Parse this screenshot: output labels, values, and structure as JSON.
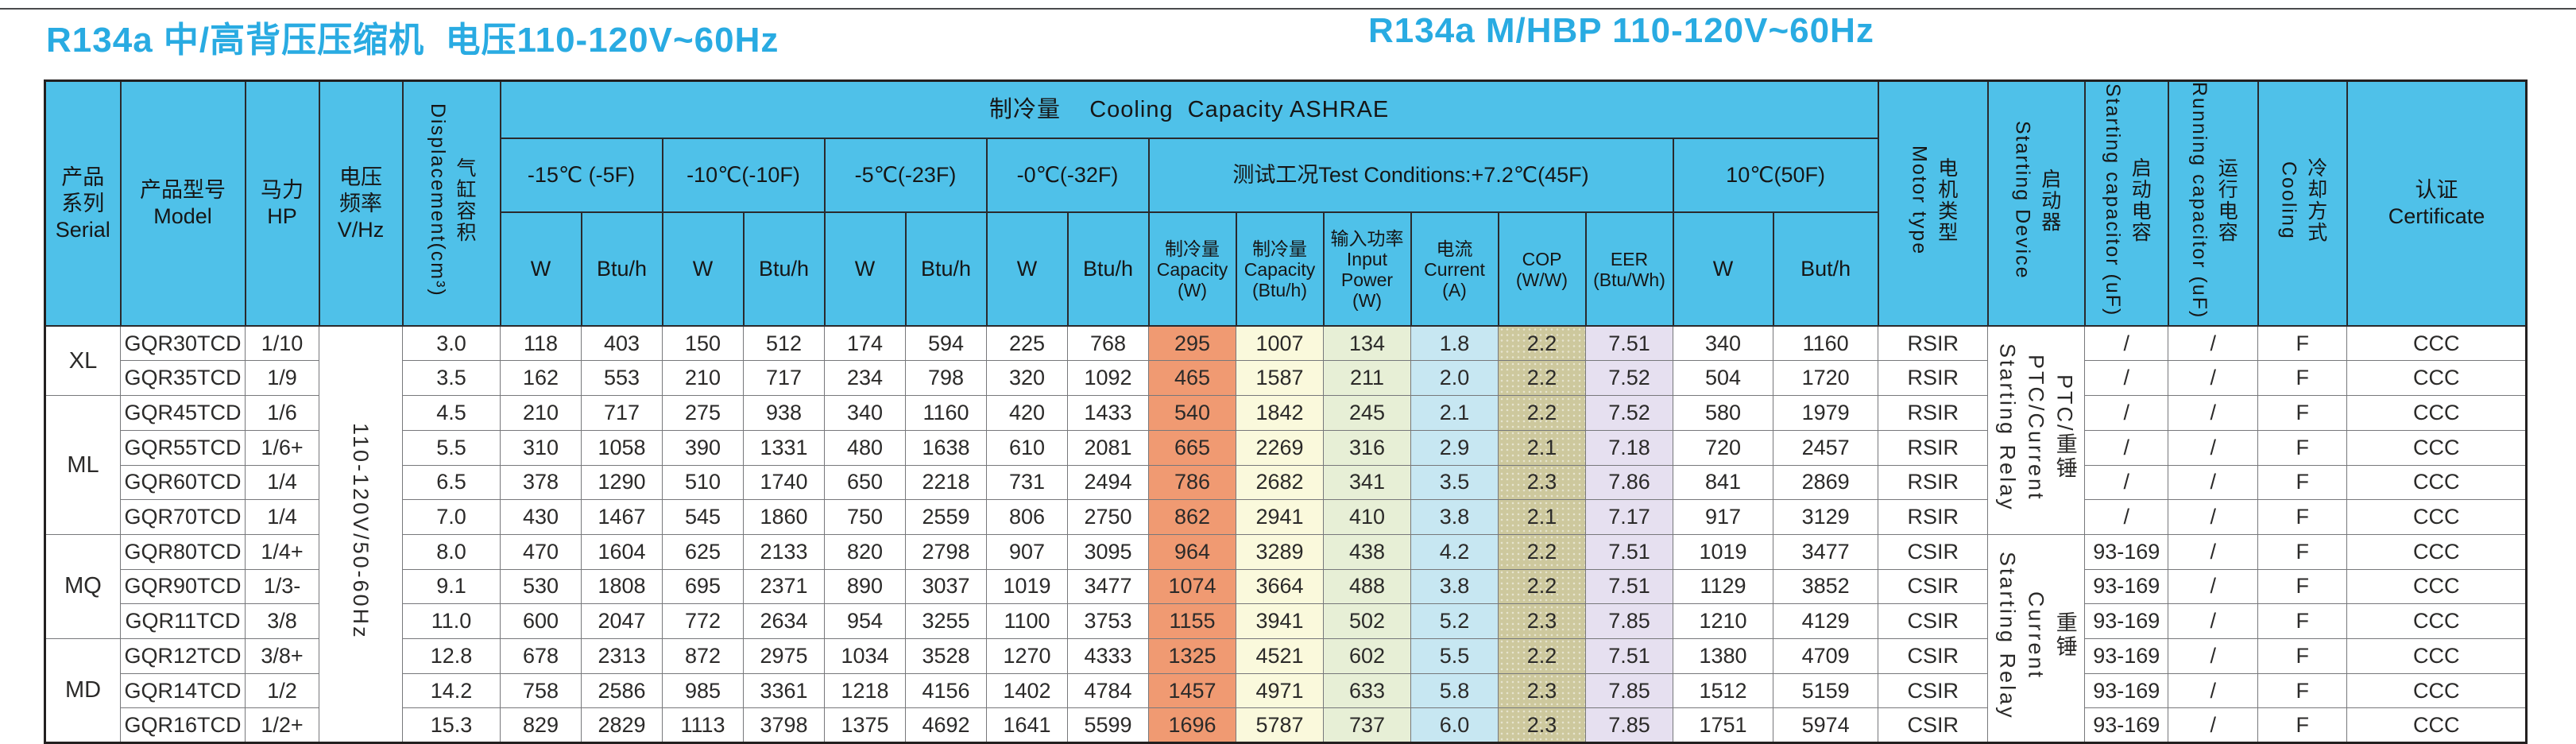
{
  "page": {
    "title_left": "R134a 中/高背压压缩机  电压110-120V~60Hz",
    "title_right": "R134a M/HBP 110-120V~60Hz"
  },
  "colors": {
    "title_cyan": "#29ABE2",
    "header_blue": "#4FC1E9",
    "tc_capacity_w": "#F09A72",
    "tc_capacity_btuh": "#FAF9DC",
    "tc_input_power": "#E7EFD6",
    "tc_current": "#C7E7F2",
    "tc_cop": "#CDC89D",
    "tc_eer": "#E6E0F0"
  },
  "table": {
    "header": {
      "serial": "产品\n系列\nSerial",
      "model": "产品型号\nModel",
      "hp": "马力HP",
      "voltage": "电压\n频率\nV/Hz",
      "displacement": "气缸容积\nDisplacement(cm³)",
      "cooling_capacity_title": "制冷量    Cooling  Capacity ASHRAE",
      "temp_groups": [
        "-15℃ (-5F)",
        "-10℃(-10F)",
        "-5℃(-23F)",
        "-0℃(-32F)"
      ],
      "w_label": "W",
      "btuh_label": "Btu/h",
      "test_conditions": "测试工况Test Conditions:+7.2℃(45F)",
      "tc_cols": [
        "制冷量\nCapacity\n(W)",
        "制冷量\nCapacity\n(Btu/h)",
        "输入功率\nInput\nPower\n(W)",
        "电流\nCurrent\n(A)",
        "COP\n(W/W)",
        "EER\n(Btu/Wh)"
      ],
      "temp_10": "10℃(50F)",
      "w10_label": "W",
      "btuh10_label": "But/h",
      "motor": "电机类型\nMotor type",
      "starting_device": "启动器\nStarting Device",
      "starting_cap": "启动电容\nStarting capacitor (uF)",
      "running_cap": "运行电容\nRunning capacitor (uF)",
      "cooling": "冷却方式\nCooling",
      "certificate": "认证\nCertificate"
    },
    "voltage_value": "110-120V/50-60Hz",
    "serial_groups": [
      {
        "label": "XL",
        "rows": 2
      },
      {
        "label": "ML",
        "rows": 4
      },
      {
        "label": "MQ",
        "rows": 3
      },
      {
        "label": "MD",
        "rows": 3
      }
    ],
    "device_groups": [
      {
        "label": "PTC/重锤\nPTC/Current\nStarting  Relay",
        "rows": 6
      },
      {
        "label": "重锤\nCurrent\nStarting  Relay",
        "rows": 6
      }
    ],
    "columns_key": [
      "model",
      "hp",
      "displacement_cm3",
      "cap_-15C_W",
      "cap_-15C_Btuh",
      "cap_-10C_W",
      "cap_-10C_Btuh",
      "cap_-5C_W",
      "cap_-5C_Btuh",
      "cap_-0C_W",
      "cap_-0C_Btuh",
      "tc_capacity_W",
      "tc_capacity_Btuh",
      "tc_input_power_W",
      "tc_current_A",
      "tc_COP",
      "tc_EER",
      "10C_W",
      "10C_Butuh",
      "motor_type",
      "starting_capacitor_uF",
      "running_capacitor_uF",
      "cooling",
      "certificate"
    ],
    "rows": [
      [
        "GQR30TCD",
        "1/10",
        "3.0",
        "118",
        "403",
        "150",
        "512",
        "174",
        "594",
        "225",
        "768",
        "295",
        "1007",
        "134",
        "1.8",
        "2.2",
        "7.51",
        "340",
        "1160",
        "RSIR",
        "/",
        "/",
        "F",
        "CCC"
      ],
      [
        "GQR35TCD",
        "1/9",
        "3.5",
        "162",
        "553",
        "210",
        "717",
        "234",
        "798",
        "320",
        "1092",
        "465",
        "1587",
        "211",
        "2.0",
        "2.2",
        "7.52",
        "504",
        "1720",
        "RSIR",
        "/",
        "/",
        "F",
        "CCC"
      ],
      [
        "GQR45TCD",
        "1/6",
        "4.5",
        "210",
        "717",
        "275",
        "938",
        "340",
        "1160",
        "420",
        "1433",
        "540",
        "1842",
        "245",
        "2.1",
        "2.2",
        "7.52",
        "580",
        "1979",
        "RSIR",
        "/",
        "/",
        "F",
        "CCC"
      ],
      [
        "GQR55TCD",
        "1/6+",
        "5.5",
        "310",
        "1058",
        "390",
        "1331",
        "480",
        "1638",
        "610",
        "2081",
        "665",
        "2269",
        "316",
        "2.9",
        "2.1",
        "7.18",
        "720",
        "2457",
        "RSIR",
        "/",
        "/",
        "F",
        "CCC"
      ],
      [
        "GQR60TCD",
        "1/4",
        "6.5",
        "378",
        "1290",
        "510",
        "1740",
        "650",
        "2218",
        "731",
        "2494",
        "786",
        "2682",
        "341",
        "3.5",
        "2.3",
        "7.86",
        "841",
        "2869",
        "RSIR",
        "/",
        "/",
        "F",
        "CCC"
      ],
      [
        "GQR70TCD",
        "1/4",
        "7.0",
        "430",
        "1467",
        "545",
        "1860",
        "750",
        "2559",
        "806",
        "2750",
        "862",
        "2941",
        "410",
        "3.8",
        "2.1",
        "7.17",
        "917",
        "3129",
        "RSIR",
        "/",
        "/",
        "F",
        "CCC"
      ],
      [
        "GQR80TCD",
        "1/4+",
        "8.0",
        "470",
        "1604",
        "625",
        "2133",
        "820",
        "2798",
        "907",
        "3095",
        "964",
        "3289",
        "438",
        "4.2",
        "2.2",
        "7.51",
        "1019",
        "3477",
        "CSIR",
        "93-169",
        "/",
        "F",
        "CCC"
      ],
      [
        "GQR90TCD",
        "1/3-",
        "9.1",
        "530",
        "1808",
        "695",
        "2371",
        "890",
        "3037",
        "1019",
        "3477",
        "1074",
        "3664",
        "488",
        "3.8",
        "2.2",
        "7.51",
        "1129",
        "3852",
        "CSIR",
        "93-169",
        "/",
        "F",
        "CCC"
      ],
      [
        "GQR11TCD",
        "3/8",
        "11.0",
        "600",
        "2047",
        "772",
        "2634",
        "954",
        "3255",
        "1100",
        "3753",
        "1155",
        "3941",
        "502",
        "5.2",
        "2.3",
        "7.85",
        "1210",
        "4129",
        "CSIR",
        "93-169",
        "/",
        "F",
        "CCC"
      ],
      [
        "GQR12TCD",
        "3/8+",
        "12.8",
        "678",
        "2313",
        "872",
        "2975",
        "1034",
        "3528",
        "1270",
        "4333",
        "1325",
        "4521",
        "602",
        "5.5",
        "2.2",
        "7.51",
        "1380",
        "4709",
        "CSIR",
        "93-169",
        "/",
        "F",
        "CCC"
      ],
      [
        "GQR14TCD",
        "1/2",
        "14.2",
        "758",
        "2586",
        "985",
        "3361",
        "1218",
        "4156",
        "1402",
        "4784",
        "1457",
        "4971",
        "633",
        "5.8",
        "2.3",
        "7.85",
        "1512",
        "5159",
        "CSIR",
        "93-169",
        "/",
        "F",
        "CCC"
      ],
      [
        "GQR16TCD",
        "1/2+",
        "15.3",
        "829",
        "2829",
        "1113",
        "3798",
        "1375",
        "4692",
        "1641",
        "5599",
        "1696",
        "5787",
        "737",
        "6.0",
        "2.3",
        "7.85",
        "1751",
        "5974",
        "CSIR",
        "93-169",
        "/",
        "F",
        "CCC"
      ]
    ]
  }
}
